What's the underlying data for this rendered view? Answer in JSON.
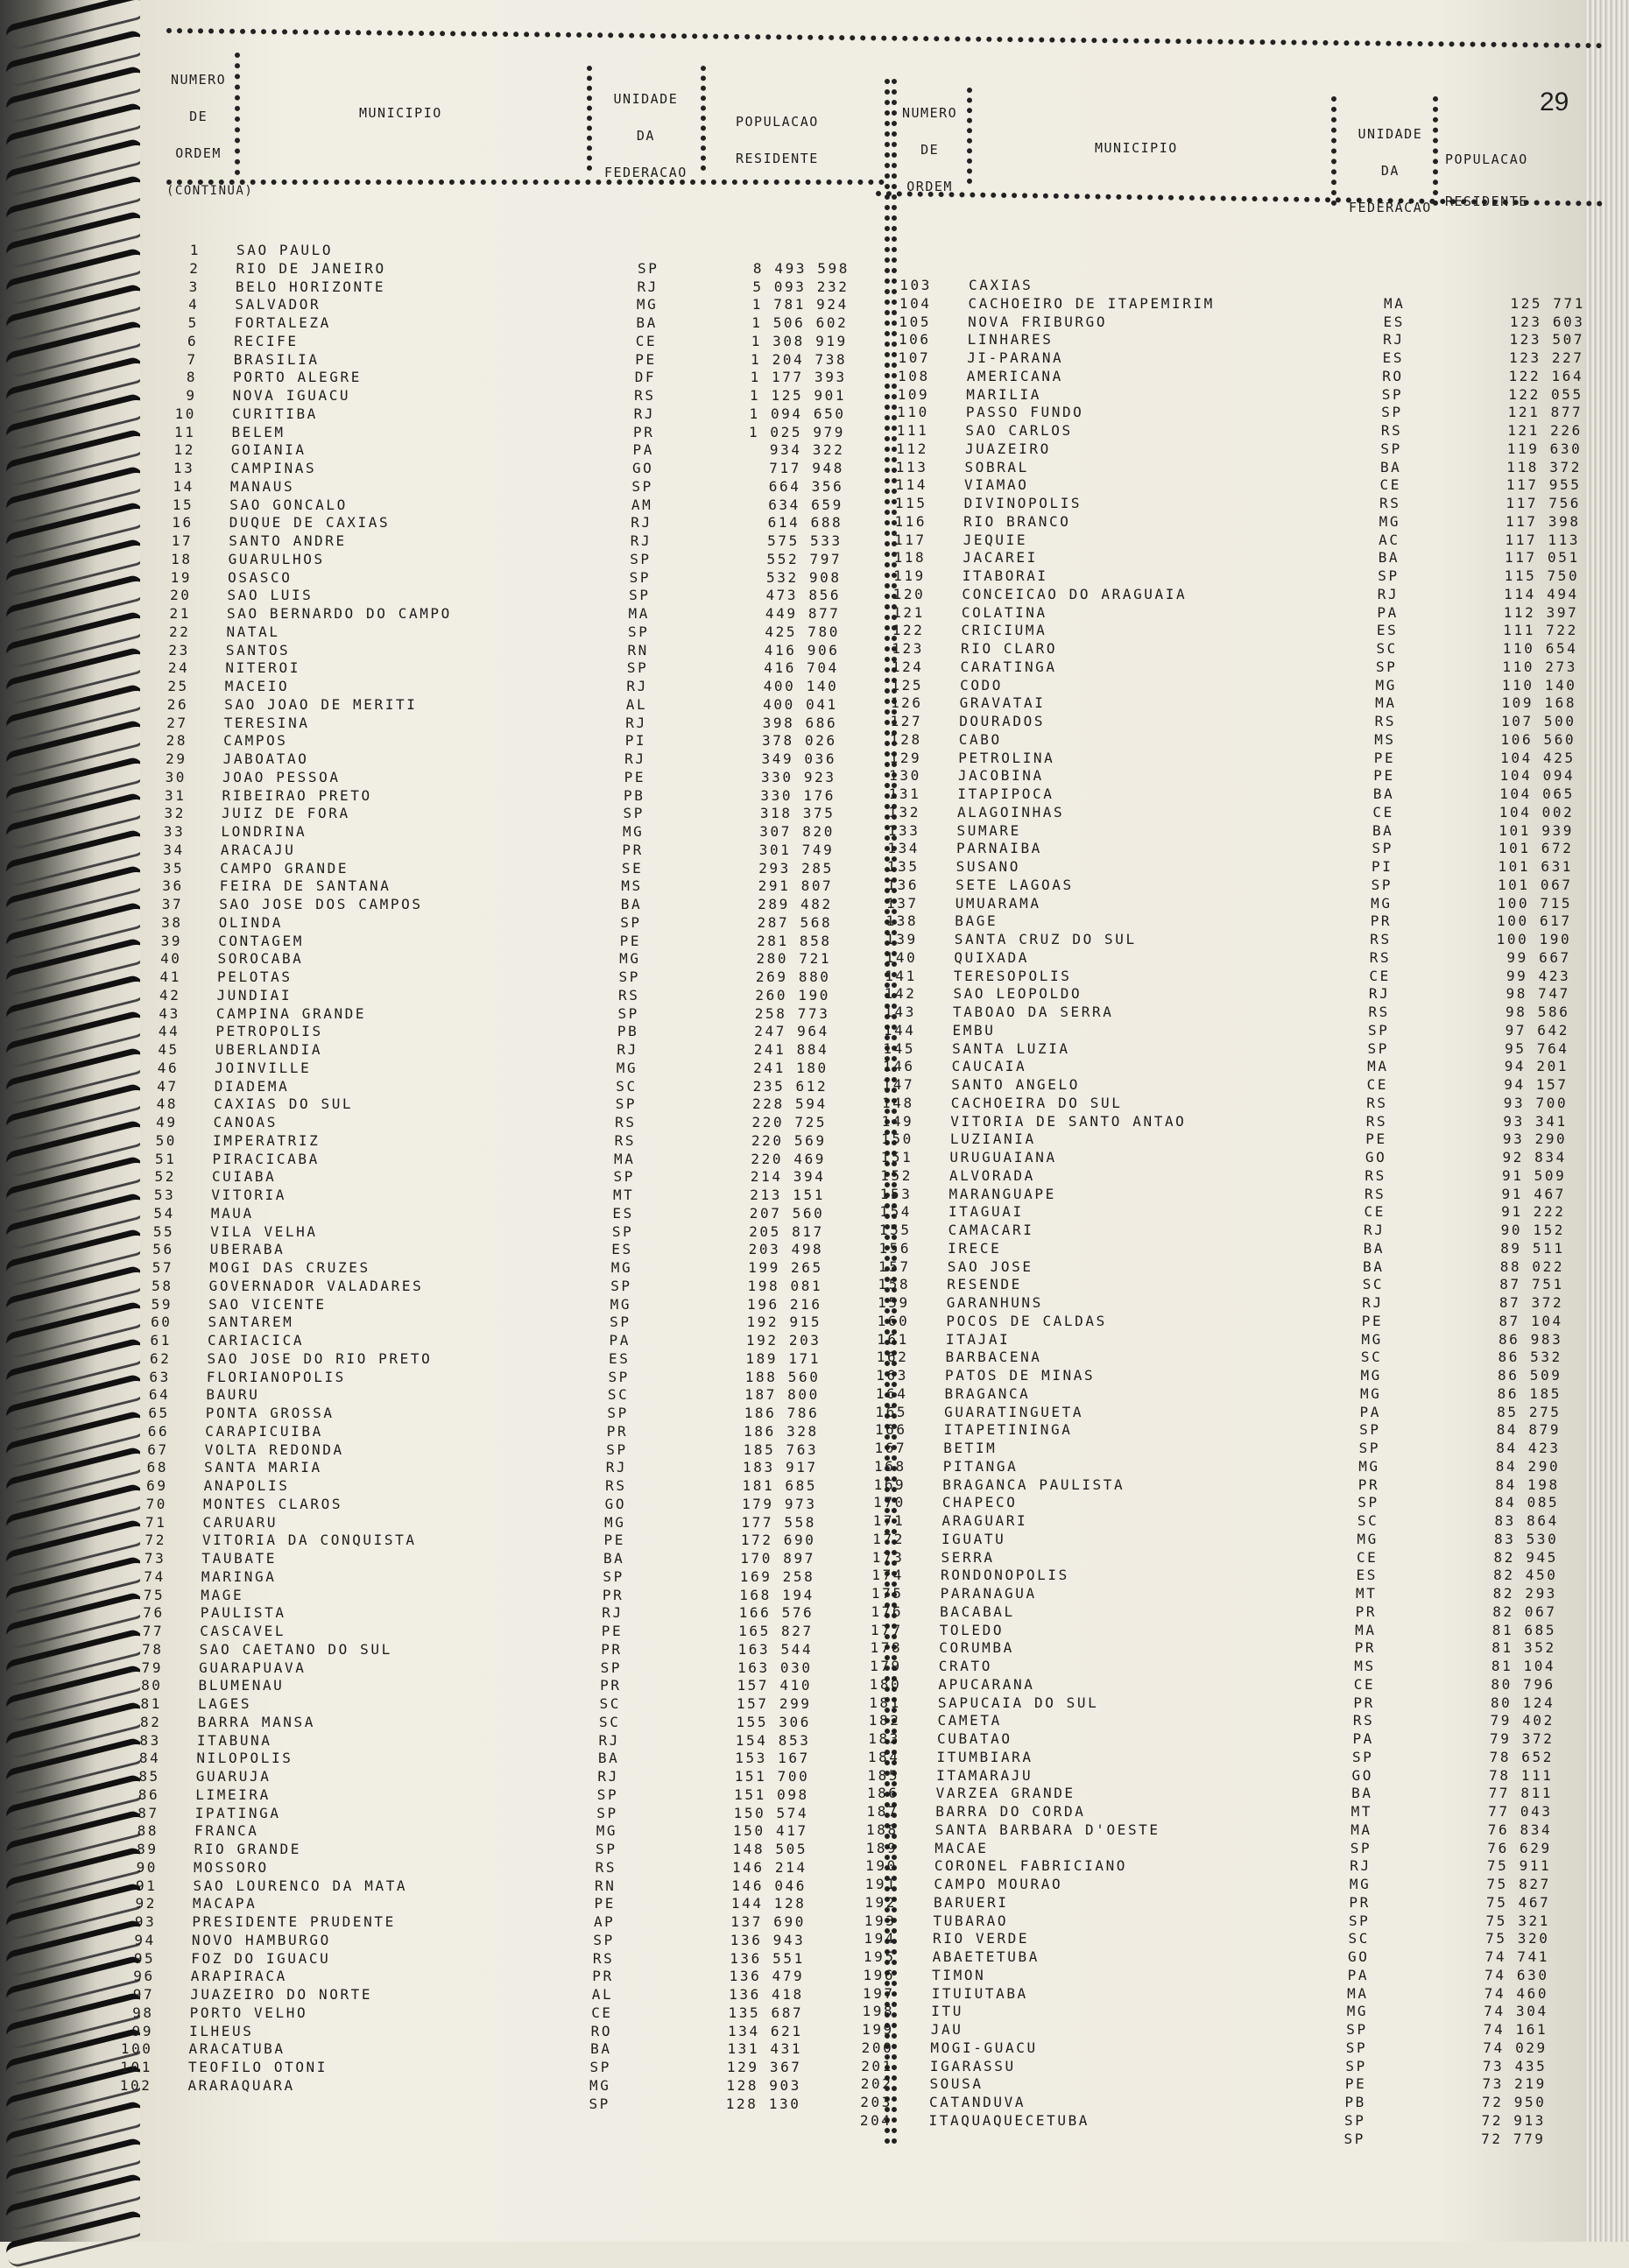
{
  "page_number": "29",
  "continued_label": "(CONTINUA)",
  "headers": {
    "numero_de_ordem": [
      "NUMERO",
      "DE",
      "ORDEM"
    ],
    "municipio": "MUNICIPIO",
    "unidade_da_federacao": [
      "UNIDADE",
      "DA",
      "FEDERACAO"
    ],
    "populacao_residente": [
      "POPULACAO",
      "RESIDENTE"
    ]
  },
  "left_rows": {
    "start": 1,
    "names": [
      "SAO PAULO",
      "RIO DE JANEIRO",
      "BELO HORIZONTE",
      "SALVADOR",
      "FORTALEZA",
      "RECIFE",
      "BRASILIA",
      "PORTO ALEGRE",
      "NOVA IGUACU",
      "CURITIBA",
      "BELEM",
      "GOIANIA",
      "CAMPINAS",
      "MANAUS",
      "SAO GONCALO",
      "DUQUE DE CAXIAS",
      "SANTO ANDRE",
      "GUARULHOS",
      "OSASCO",
      "SAO LUIS",
      "SAO BERNARDO DO CAMPO",
      "NATAL",
      "SANTOS",
      "NITEROI",
      "MACEIO",
      "SAO JOAO DE MERITI",
      "TERESINA",
      "CAMPOS",
      "JABOATAO",
      "JOAO PESSOA",
      "RIBEIRAO PRETO",
      "JUIZ DE FORA",
      "LONDRINA",
      "ARACAJU",
      "CAMPO GRANDE",
      "FEIRA DE SANTANA",
      "SAO JOSE DOS CAMPOS",
      "OLINDA",
      "CONTAGEM",
      "SOROCABA",
      "PELOTAS",
      "JUNDIAI",
      "CAMPINA GRANDE",
      "PETROPOLIS",
      "UBERLANDIA",
      "JOINVILLE",
      "DIADEMA",
      "CAXIAS DO SUL",
      "CANOAS",
      "IMPERATRIZ",
      "PIRACICABA",
      "CUIABA",
      "VITORIA",
      "MAUA",
      "VILA VELHA",
      "UBERABA",
      "MOGI DAS CRUZES",
      "GOVERNADOR VALADARES",
      "SAO VICENTE",
      "SANTAREM",
      "CARIACICA",
      "SAO JOSE DO RIO PRETO",
      "FLORIANOPOLIS",
      "BAURU",
      "PONTA GROSSA",
      "CARAPICUIBA",
      "VOLTA REDONDA",
      "SANTA MARIA",
      "ANAPOLIS",
      "MONTES CLAROS",
      "CARUARU",
      "VITORIA DA CONQUISTA",
      "TAUBATE",
      "MARINGA",
      "MAGE",
      "PAULISTA",
      "CASCAVEL",
      "SAO CAETANO DO SUL",
      "GUARAPUAVA",
      "BLUMENAU",
      "LAGES",
      "BARRA MANSA",
      "ITABUNA",
      "NILOPOLIS",
      "GUARUJA",
      "LIMEIRA",
      "IPATINGA",
      "FRANCA",
      "RIO GRANDE",
      "MOSSORO",
      "SAO LOURENCO DA MATA",
      "MACAPA",
      "PRESIDENTE PRUDENTE",
      "NOVO HAMBURGO",
      "FOZ DO IGUACU",
      "ARAPIRACA",
      "JUAZEIRO DO NORTE",
      "PORTO VELHO",
      "ILHEUS",
      "ARACATUBA",
      "TEOFILO OTONI",
      "ARARAQUARA"
    ],
    "ufs": [
      "SP",
      "RJ",
      "MG",
      "BA",
      "CE",
      "PE",
      "DF",
      "RS",
      "RJ",
      "PR",
      "PA",
      "GO",
      "SP",
      "AM",
      "RJ",
      "RJ",
      "SP",
      "SP",
      "SP",
      "MA",
      "SP",
      "RN",
      "SP",
      "RJ",
      "AL",
      "RJ",
      "PI",
      "RJ",
      "PE",
      "PB",
      "SP",
      "MG",
      "PR",
      "SE",
      "MS",
      "BA",
      "SP",
      "PE",
      "MG",
      "SP",
      "RS",
      "SP",
      "PB",
      "RJ",
      "MG",
      "SC",
      "SP",
      "RS",
      "RS",
      "MA",
      "SP",
      "MT",
      "ES",
      "SP",
      "ES",
      "MG",
      "SP",
      "MG",
      "SP",
      "PA",
      "ES",
      "SP",
      "SC",
      "SP",
      "PR",
      "SP",
      "RJ",
      "RS",
      "GO",
      "MG",
      "PE",
      "BA",
      "SP",
      "PR",
      "RJ",
      "PE",
      "PR",
      "SP",
      "PR",
      "SC",
      "SC",
      "RJ",
      "BA",
      "RJ",
      "SP",
      "SP",
      "MG",
      "SP",
      "RS",
      "RN",
      "PE",
      "AP",
      "SP",
      "RS",
      "PR",
      "AL",
      "CE",
      "RO",
      "BA",
      "SP",
      "MG",
      "SP"
    ],
    "populations": [
      "8 493 598",
      "5 093 232",
      "1 781 924",
      "1 506 602",
      "1 308 919",
      "1 204 738",
      "1 177 393",
      "1 125 901",
      "1 094 650",
      "1 025 979",
      "934 322",
      "717 948",
      "664 356",
      "634 659",
      "614 688",
      "575 533",
      "552 797",
      "532 908",
      "473 856",
      "449 877",
      "425 780",
      "416 906",
      "416 704",
      "400 140",
      "400 041",
      "398 686",
      "378 026",
      "349 036",
      "330 923",
      "330 176",
      "318 375",
      "307 820",
      "301 749",
      "293 285",
      "291 807",
      "289 482",
      "287 568",
      "281 858",
      "280 721",
      "269 880",
      "260 190",
      "258 773",
      "247 964",
      "241 884",
      "241 180",
      "235 612",
      "228 594",
      "220 725",
      "220 569",
      "220 469",
      "214 394",
      "213 151",
      "207 560",
      "205 817",
      "203 498",
      "199 265",
      "198 081",
      "196 216",
      "192 915",
      "192 203",
      "189 171",
      "188 560",
      "187 800",
      "186 786",
      "186 328",
      "185 763",
      "183 917",
      "181 685",
      "179 973",
      "177 558",
      "172 690",
      "170 897",
      "169 258",
      "168 194",
      "166 576",
      "165 827",
      "163 544",
      "163 030",
      "157 410",
      "157 299",
      "155 306",
      "154 853",
      "153 167",
      "151 700",
      "151 098",
      "150 574",
      "150 417",
      "148 505",
      "146 214",
      "146 046",
      "144 128",
      "137 690",
      "136 943",
      "136 551",
      "136 479",
      "136 418",
      "135 687",
      "134 621",
      "131 431",
      "129 367",
      "128 903",
      "128 130"
    ]
  },
  "right_rows": {
    "start": 103,
    "names": [
      "CAXIAS",
      "CACHOEIRO DE ITAPEMIRIM",
      "NOVA FRIBURGO",
      "LINHARES",
      "JI-PARANA",
      "AMERICANA",
      "MARILIA",
      "PASSO FUNDO",
      "SAO CARLOS",
      "JUAZEIRO",
      "SOBRAL",
      "VIAMAO",
      "DIVINOPOLIS",
      "RIO BRANCO",
      "JEQUIE",
      "JACAREI",
      "ITABORAI",
      "CONCEICAO DO ARAGUAIA",
      "COLATINA",
      "CRICIUMA",
      "RIO CLARO",
      "CARATINGA",
      "CODO",
      "GRAVATAI",
      "DOURADOS",
      "CABO",
      "PETROLINA",
      "JACOBINA",
      "ITAPIPOCA",
      "ALAGOINHAS",
      "SUMARE",
      "PARNAIBA",
      "SUSANO",
      "SETE LAGOAS",
      "UMUARAMA",
      "BAGE",
      "SANTA CRUZ DO SUL",
      "QUIXADA",
      "TERESOPOLIS",
      "SAO LEOPOLDO",
      "TABOAO DA SERRA",
      "EMBU",
      "SANTA LUZIA",
      "CAUCAIA",
      "SANTO ANGELO",
      "CACHOEIRA DO SUL",
      "VITORIA DE SANTO ANTAO",
      "LUZIANIA",
      "URUGUAIANA",
      "ALVORADA",
      "MARANGUAPE",
      "ITAGUAI",
      "CAMACARI",
      "IRECE",
      "SAO JOSE",
      "RESENDE",
      "GARANHUNS",
      "POCOS DE CALDAS",
      "ITAJAI",
      "BARBACENA",
      "PATOS DE MINAS",
      "BRAGANCA",
      "GUARATINGUETA",
      "ITAPETININGA",
      "BETIM",
      "PITANGA",
      "BRAGANCA PAULISTA",
      "CHAPECO",
      "ARAGUARI",
      "IGUATU",
      "SERRA",
      "RONDONOPOLIS",
      "PARANAGUA",
      "BACABAL",
      "TOLEDO",
      "CORUMBA",
      "CRATO",
      "APUCARANA",
      "SAPUCAIA DO SUL",
      "CAMETA",
      "CUBATAO",
      "ITUMBIARA",
      "ITAMARAJU",
      "VARZEA GRANDE",
      "BARRA DO CORDA",
      "SANTA BARBARA D'OESTE",
      "MACAE",
      "CORONEL FABRICIANO",
      "CAMPO MOURAO",
      "BARUERI",
      "TUBARAO",
      "RIO VERDE",
      "ABAETETUBA",
      "TIMON",
      "ITUIUTABA",
      "ITU",
      "JAU",
      "MOGI-GUACU",
      "IGARASSU",
      "SOUSA",
      "CATANDUVA",
      "ITAQUAQUECETUBA"
    ],
    "ufs": [
      "MA",
      "ES",
      "RJ",
      "ES",
      "RO",
      "SP",
      "SP",
      "RS",
      "SP",
      "BA",
      "CE",
      "RS",
      "MG",
      "AC",
      "BA",
      "SP",
      "RJ",
      "PA",
      "ES",
      "SC",
      "SP",
      "MG",
      "MA",
      "RS",
      "MS",
      "PE",
      "PE",
      "BA",
      "CE",
      "BA",
      "SP",
      "PI",
      "SP",
      "MG",
      "PR",
      "RS",
      "RS",
      "CE",
      "RJ",
      "RS",
      "SP",
      "SP",
      "MA",
      "CE",
      "RS",
      "RS",
      "PE",
      "GO",
      "RS",
      "RS",
      "CE",
      "RJ",
      "BA",
      "BA",
      "SC",
      "RJ",
      "PE",
      "MG",
      "SC",
      "MG",
      "MG",
      "PA",
      "SP",
      "SP",
      "MG",
      "PR",
      "SP",
      "SC",
      "MG",
      "CE",
      "ES",
      "MT",
      "PR",
      "MA",
      "PR",
      "MS",
      "CE",
      "PR",
      "RS",
      "PA",
      "SP",
      "GO",
      "BA",
      "MT",
      "MA",
      "SP",
      "RJ",
      "MG",
      "PR",
      "SP",
      "SC",
      "GO",
      "PA",
      "MA",
      "MG",
      "SP",
      "SP",
      "SP",
      "PE",
      "PB",
      "SP",
      "SP"
    ],
    "populations": [
      "125 771",
      "123 603",
      "123 507",
      "123 227",
      "122 164",
      "122 055",
      "121 877",
      "121 226",
      "119 630",
      "118 372",
      "117 955",
      "117 756",
      "117 398",
      "117 113",
      "117 051",
      "115 750",
      "114 494",
      "112 397",
      "111 722",
      "110 654",
      "110 273",
      "110 140",
      "109 168",
      "107 500",
      "106 560",
      "104 425",
      "104 094",
      "104 065",
      "104 002",
      "101 939",
      "101 672",
      "101 631",
      "101 067",
      "100 715",
      "100 617",
      "100 190",
      "99 667",
      "99 423",
      "98 747",
      "98 586",
      "97 642",
      "95 764",
      "94 201",
      "94 157",
      "93 700",
      "93 341",
      "93 290",
      "92 834",
      "91 509",
      "91 467",
      "91 222",
      "90 152",
      "89 511",
      "88 022",
      "87 751",
      "87 372",
      "87 104",
      "86 983",
      "86 532",
      "86 509",
      "86 185",
      "85 275",
      "84 879",
      "84 423",
      "84 290",
      "84 198",
      "84 085",
      "83 864",
      "83 530",
      "82 945",
      "82 450",
      "82 293",
      "82 067",
      "81 685",
      "81 352",
      "81 104",
      "80 796",
      "80 124",
      "79 402",
      "79 372",
      "78 652",
      "78 111",
      "77 811",
      "77 043",
      "76 834",
      "76 629",
      "75 911",
      "75 827",
      "75 467",
      "75 321",
      "75 320",
      "74 741",
      "74 630",
      "74 460",
      "74 304",
      "74 161",
      "74 029",
      "73 435",
      "73 219",
      "72 950",
      "72 913",
      "72 779"
    ]
  }
}
